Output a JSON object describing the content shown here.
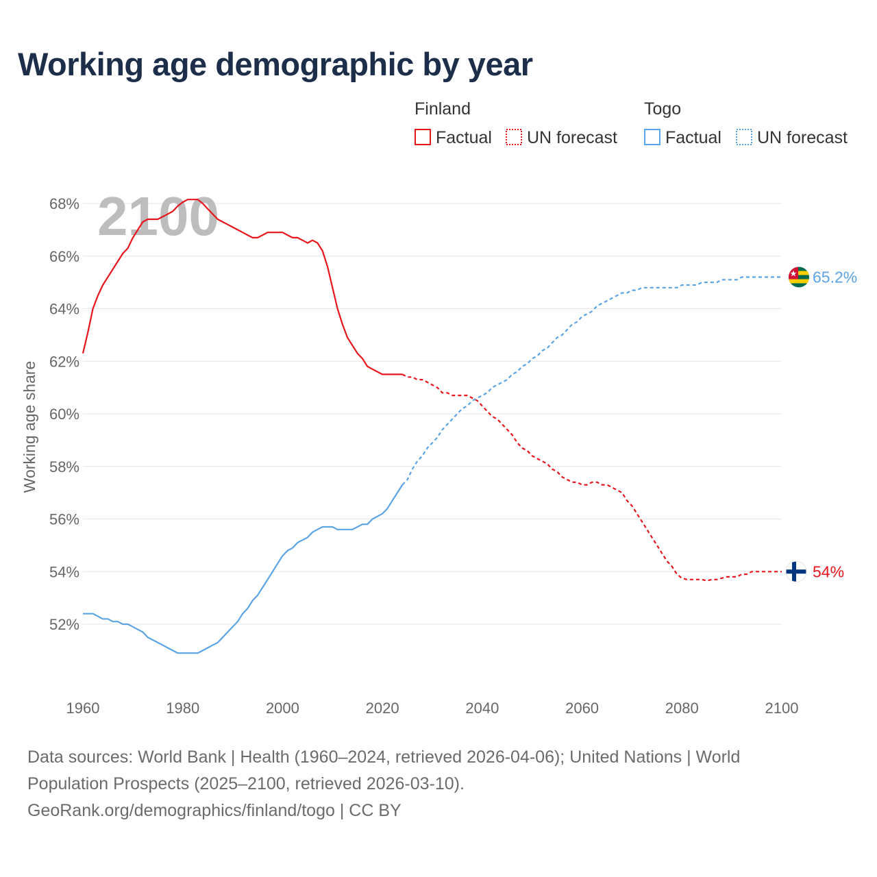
{
  "title": "Working age demographic by year",
  "source": {
    "line1": "Data sources: World Bank | Health (1960–2024, retrieved 2026-04-06); United Nations | World",
    "line2": "Population Prospects (2025–2100, retrieved 2026-03-10).",
    "line3": "GeoRank.org/demographics/finland/togo | CC BY"
  },
  "legend": {
    "groups": [
      {
        "name": "Finland",
        "color": "#e8141c",
        "factual_label": "Factual",
        "forecast_label": "UN forecast"
      },
      {
        "name": "Togo",
        "color": "#5aa4e6",
        "factual_label": "Factual",
        "forecast_label": "UN forecast"
      }
    ]
  },
  "flags": {
    "finland": "finland-flag-icon",
    "togo": "togo-flag-icon"
  },
  "chart_data": {
    "type": "line",
    "title": "Working age demographic by year",
    "xlabel": "",
    "ylabel": "Working age share",
    "xlim": [
      1960,
      2100
    ],
    "ylim": [
      50,
      68.5
    ],
    "xticks": [
      1960,
      1980,
      2000,
      2020,
      2040,
      2060,
      2080,
      2100
    ],
    "xtick_labels": [
      "1960",
      "1980",
      "2000",
      "2020",
      "2040",
      "2060",
      "2080",
      "2100"
    ],
    "yticks": [
      52,
      54,
      56,
      58,
      60,
      62,
      64,
      66,
      68
    ],
    "ytick_labels": [
      "52%",
      "54%",
      "56%",
      "58%",
      "60%",
      "62%",
      "64%",
      "66%",
      "68%"
    ],
    "year_overlay": "2100",
    "forecast_start": 2024,
    "series": [
      {
        "name": "Finland",
        "color": "#e8141c",
        "end_label": "54%",
        "points": [
          [
            1960,
            62.3
          ],
          [
            1961,
            63.1
          ],
          [
            1962,
            64.0
          ],
          [
            1963,
            64.5
          ],
          [
            1964,
            64.9
          ],
          [
            1965,
            65.2
          ],
          [
            1966,
            65.5
          ],
          [
            1967,
            65.8
          ],
          [
            1968,
            66.1
          ],
          [
            1969,
            66.3
          ],
          [
            1970,
            66.7
          ],
          [
            1971,
            67.0
          ],
          [
            1972,
            67.3
          ],
          [
            1973,
            67.4
          ],
          [
            1974,
            67.4
          ],
          [
            1975,
            67.4
          ],
          [
            1976,
            67.5
          ],
          [
            1977,
            67.6
          ],
          [
            1978,
            67.7
          ],
          [
            1979,
            67.9
          ],
          [
            1980,
            68.05
          ],
          [
            1981,
            68.15
          ],
          [
            1982,
            68.15
          ],
          [
            1983,
            68.15
          ],
          [
            1984,
            68.0
          ],
          [
            1985,
            67.8
          ],
          [
            1986,
            67.6
          ],
          [
            1987,
            67.4
          ],
          [
            1988,
            67.3
          ],
          [
            1989,
            67.2
          ],
          [
            1990,
            67.1
          ],
          [
            1991,
            67.0
          ],
          [
            1992,
            66.9
          ],
          [
            1993,
            66.8
          ],
          [
            1994,
            66.7
          ],
          [
            1995,
            66.7
          ],
          [
            1996,
            66.8
          ],
          [
            1997,
            66.9
          ],
          [
            1998,
            66.9
          ],
          [
            1999,
            66.9
          ],
          [
            2000,
            66.9
          ],
          [
            2001,
            66.8
          ],
          [
            2002,
            66.7
          ],
          [
            2003,
            66.7
          ],
          [
            2004,
            66.6
          ],
          [
            2005,
            66.5
          ],
          [
            2006,
            66.6
          ],
          [
            2007,
            66.5
          ],
          [
            2008,
            66.2
          ],
          [
            2009,
            65.6
          ],
          [
            2010,
            64.8
          ],
          [
            2011,
            64.0
          ],
          [
            2012,
            63.4
          ],
          [
            2013,
            62.9
          ],
          [
            2014,
            62.6
          ],
          [
            2015,
            62.3
          ],
          [
            2016,
            62.1
          ],
          [
            2017,
            61.8
          ],
          [
            2018,
            61.7
          ],
          [
            2019,
            61.6
          ],
          [
            2020,
            61.5
          ],
          [
            2021,
            61.5
          ],
          [
            2022,
            61.5
          ],
          [
            2023,
            61.5
          ],
          [
            2024,
            61.5
          ],
          [
            2025,
            61.4
          ],
          [
            2026,
            61.4
          ],
          [
            2027,
            61.3
          ],
          [
            2028,
            61.3
          ],
          [
            2029,
            61.2
          ],
          [
            2030,
            61.1
          ],
          [
            2031,
            61.0
          ],
          [
            2032,
            60.8
          ],
          [
            2033,
            60.8
          ],
          [
            2034,
            60.7
          ],
          [
            2035,
            60.7
          ],
          [
            2036,
            60.7
          ],
          [
            2037,
            60.7
          ],
          [
            2038,
            60.6
          ],
          [
            2039,
            60.5
          ],
          [
            2040,
            60.3
          ],
          [
            2041,
            60.1
          ],
          [
            2042,
            59.9
          ],
          [
            2043,
            59.8
          ],
          [
            2044,
            59.6
          ],
          [
            2045,
            59.4
          ],
          [
            2046,
            59.2
          ],
          [
            2047,
            58.9
          ],
          [
            2048,
            58.7
          ],
          [
            2049,
            58.6
          ],
          [
            2050,
            58.4
          ],
          [
            2051,
            58.3
          ],
          [
            2052,
            58.2
          ],
          [
            2053,
            58.1
          ],
          [
            2054,
            57.9
          ],
          [
            2055,
            57.8
          ],
          [
            2056,
            57.6
          ],
          [
            2057,
            57.5
          ],
          [
            2058,
            57.4
          ],
          [
            2059,
            57.4
          ],
          [
            2060,
            57.3
          ],
          [
            2061,
            57.3
          ],
          [
            2062,
            57.4
          ],
          [
            2063,
            57.4
          ],
          [
            2064,
            57.3
          ],
          [
            2065,
            57.3
          ],
          [
            2066,
            57.2
          ],
          [
            2067,
            57.1
          ],
          [
            2068,
            57.0
          ],
          [
            2069,
            56.7
          ],
          [
            2070,
            56.5
          ],
          [
            2071,
            56.2
          ],
          [
            2072,
            55.9
          ],
          [
            2073,
            55.6
          ],
          [
            2074,
            55.3
          ],
          [
            2075,
            55.0
          ],
          [
            2076,
            54.7
          ],
          [
            2077,
            54.4
          ],
          [
            2078,
            54.2
          ],
          [
            2079,
            53.9
          ],
          [
            2080,
            53.75
          ],
          [
            2081,
            53.7
          ],
          [
            2082,
            53.7
          ],
          [
            2083,
            53.7
          ],
          [
            2084,
            53.7
          ],
          [
            2085,
            53.65
          ],
          [
            2086,
            53.7
          ],
          [
            2087,
            53.7
          ],
          [
            2088,
            53.75
          ],
          [
            2089,
            53.8
          ],
          [
            2090,
            53.8
          ],
          [
            2091,
            53.8
          ],
          [
            2092,
            53.9
          ],
          [
            2093,
            53.9
          ],
          [
            2094,
            54.0
          ],
          [
            2095,
            54.0
          ],
          [
            2096,
            54.0
          ],
          [
            2097,
            54.0
          ],
          [
            2098,
            54.0
          ],
          [
            2099,
            54.0
          ],
          [
            2100,
            54.0
          ]
        ]
      },
      {
        "name": "Togo",
        "color": "#5aa4e6",
        "end_label": "65.2%",
        "points": [
          [
            1960,
            52.4
          ],
          [
            1961,
            52.4
          ],
          [
            1962,
            52.4
          ],
          [
            1963,
            52.3
          ],
          [
            1964,
            52.2
          ],
          [
            1965,
            52.2
          ],
          [
            1966,
            52.1
          ],
          [
            1967,
            52.1
          ],
          [
            1968,
            52.0
          ],
          [
            1969,
            52.0
          ],
          [
            1970,
            51.9
          ],
          [
            1971,
            51.8
          ],
          [
            1972,
            51.7
          ],
          [
            1973,
            51.5
          ],
          [
            1974,
            51.4
          ],
          [
            1975,
            51.3
          ],
          [
            1976,
            51.2
          ],
          [
            1977,
            51.1
          ],
          [
            1978,
            51.0
          ],
          [
            1979,
            50.9
          ],
          [
            1980,
            50.9
          ],
          [
            1981,
            50.9
          ],
          [
            1982,
            50.9
          ],
          [
            1983,
            50.9
          ],
          [
            1984,
            51.0
          ],
          [
            1985,
            51.1
          ],
          [
            1986,
            51.2
          ],
          [
            1987,
            51.3
          ],
          [
            1988,
            51.5
          ],
          [
            1989,
            51.7
          ],
          [
            1990,
            51.9
          ],
          [
            1991,
            52.1
          ],
          [
            1992,
            52.4
          ],
          [
            1993,
            52.6
          ],
          [
            1994,
            52.9
          ],
          [
            1995,
            53.1
          ],
          [
            1996,
            53.4
          ],
          [
            1997,
            53.7
          ],
          [
            1998,
            54.0
          ],
          [
            1999,
            54.3
          ],
          [
            2000,
            54.6
          ],
          [
            2001,
            54.8
          ],
          [
            2002,
            54.9
          ],
          [
            2003,
            55.1
          ],
          [
            2004,
            55.2
          ],
          [
            2005,
            55.3
          ],
          [
            2006,
            55.5
          ],
          [
            2007,
            55.6
          ],
          [
            2008,
            55.7
          ],
          [
            2009,
            55.7
          ],
          [
            2010,
            55.7
          ],
          [
            2011,
            55.6
          ],
          [
            2012,
            55.6
          ],
          [
            2013,
            55.6
          ],
          [
            2014,
            55.6
          ],
          [
            2015,
            55.7
          ],
          [
            2016,
            55.8
          ],
          [
            2017,
            55.8
          ],
          [
            2018,
            56.0
          ],
          [
            2019,
            56.1
          ],
          [
            2020,
            56.2
          ],
          [
            2021,
            56.4
          ],
          [
            2022,
            56.7
          ],
          [
            2023,
            57.0
          ],
          [
            2024,
            57.3
          ],
          [
            2025,
            57.5
          ],
          [
            2026,
            57.9
          ],
          [
            2027,
            58.2
          ],
          [
            2028,
            58.4
          ],
          [
            2029,
            58.7
          ],
          [
            2030,
            58.9
          ],
          [
            2031,
            59.1
          ],
          [
            2032,
            59.4
          ],
          [
            2033,
            59.6
          ],
          [
            2034,
            59.8
          ],
          [
            2035,
            60.0
          ],
          [
            2036,
            60.2
          ],
          [
            2037,
            60.3
          ],
          [
            2038,
            60.5
          ],
          [
            2039,
            60.6
          ],
          [
            2040,
            60.7
          ],
          [
            2041,
            60.8
          ],
          [
            2042,
            61.0
          ],
          [
            2043,
            61.1
          ],
          [
            2044,
            61.2
          ],
          [
            2045,
            61.3
          ],
          [
            2046,
            61.5
          ],
          [
            2047,
            61.6
          ],
          [
            2048,
            61.8
          ],
          [
            2049,
            61.9
          ],
          [
            2050,
            62.1
          ],
          [
            2051,
            62.2
          ],
          [
            2052,
            62.4
          ],
          [
            2053,
            62.5
          ],
          [
            2054,
            62.7
          ],
          [
            2055,
            62.9
          ],
          [
            2056,
            63.0
          ],
          [
            2057,
            63.2
          ],
          [
            2058,
            63.4
          ],
          [
            2059,
            63.5
          ],
          [
            2060,
            63.7
          ],
          [
            2061,
            63.8
          ],
          [
            2062,
            63.9
          ],
          [
            2063,
            64.1
          ],
          [
            2064,
            64.2
          ],
          [
            2065,
            64.3
          ],
          [
            2066,
            64.4
          ],
          [
            2067,
            64.5
          ],
          [
            2068,
            64.6
          ],
          [
            2069,
            64.6
          ],
          [
            2070,
            64.7
          ],
          [
            2071,
            64.7
          ],
          [
            2072,
            64.8
          ],
          [
            2073,
            64.8
          ],
          [
            2074,
            64.8
          ],
          [
            2075,
            64.8
          ],
          [
            2076,
            64.8
          ],
          [
            2077,
            64.8
          ],
          [
            2078,
            64.8
          ],
          [
            2079,
            64.8
          ],
          [
            2080,
            64.9
          ],
          [
            2081,
            64.9
          ],
          [
            2082,
            64.9
          ],
          [
            2083,
            64.9
          ],
          [
            2084,
            65.0
          ],
          [
            2085,
            65.0
          ],
          [
            2086,
            65.0
          ],
          [
            2087,
            65.0
          ],
          [
            2088,
            65.1
          ],
          [
            2089,
            65.1
          ],
          [
            2090,
            65.1
          ],
          [
            2091,
            65.1
          ],
          [
            2092,
            65.2
          ],
          [
            2093,
            65.2
          ],
          [
            2094,
            65.2
          ],
          [
            2095,
            65.2
          ],
          [
            2096,
            65.2
          ],
          [
            2097,
            65.2
          ],
          [
            2098,
            65.2
          ],
          [
            2099,
            65.2
          ],
          [
            2100,
            65.2
          ]
        ]
      }
    ]
  }
}
